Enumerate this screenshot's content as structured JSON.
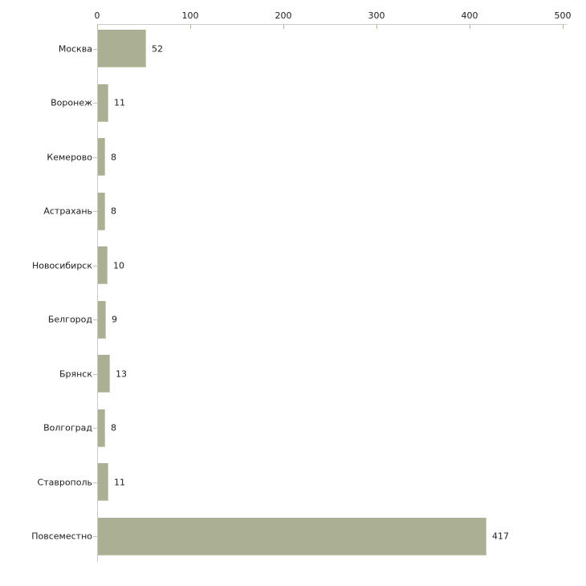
{
  "chart_data": {
    "type": "bar",
    "orientation": "horizontal",
    "title": "",
    "xlabel": "",
    "ylabel": "",
    "categories": [
      "Москва",
      "Воронеж",
      "Кемерово",
      "Астрахань",
      "Новосибирск",
      "Белгород",
      "Брянск",
      "Волгоград",
      "Ставрополь",
      "Повсеместно"
    ],
    "values": [
      52,
      11,
      8,
      8,
      10,
      9,
      13,
      8,
      11,
      417
    ],
    "value_labels_shown": true,
    "x_ticks": [
      0,
      100,
      200,
      300,
      400,
      500
    ],
    "xlim": [
      0,
      500
    ],
    "axis_position": "top",
    "grid": false,
    "legend": "none",
    "colors": {
      "bar_fill": "#abb094",
      "bar_edge": "#c6c9b1",
      "axis_line": "#cbcbcb",
      "x_tick_mark": "#b9ba8f",
      "y_tick_mark": "#c3c3b8",
      "text": "#1c1c1c",
      "background": "#ffffff"
    }
  }
}
